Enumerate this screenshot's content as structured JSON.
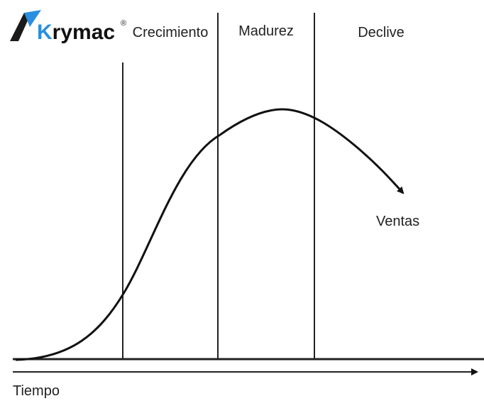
{
  "logo": {
    "initial": "K",
    "rest": "rymac",
    "mark": "®"
  },
  "stages": [
    "Crecimiento",
    "Madurez",
    "Declive"
  ],
  "curve_label": "Ventas",
  "axis_label": "Tiempo"
}
